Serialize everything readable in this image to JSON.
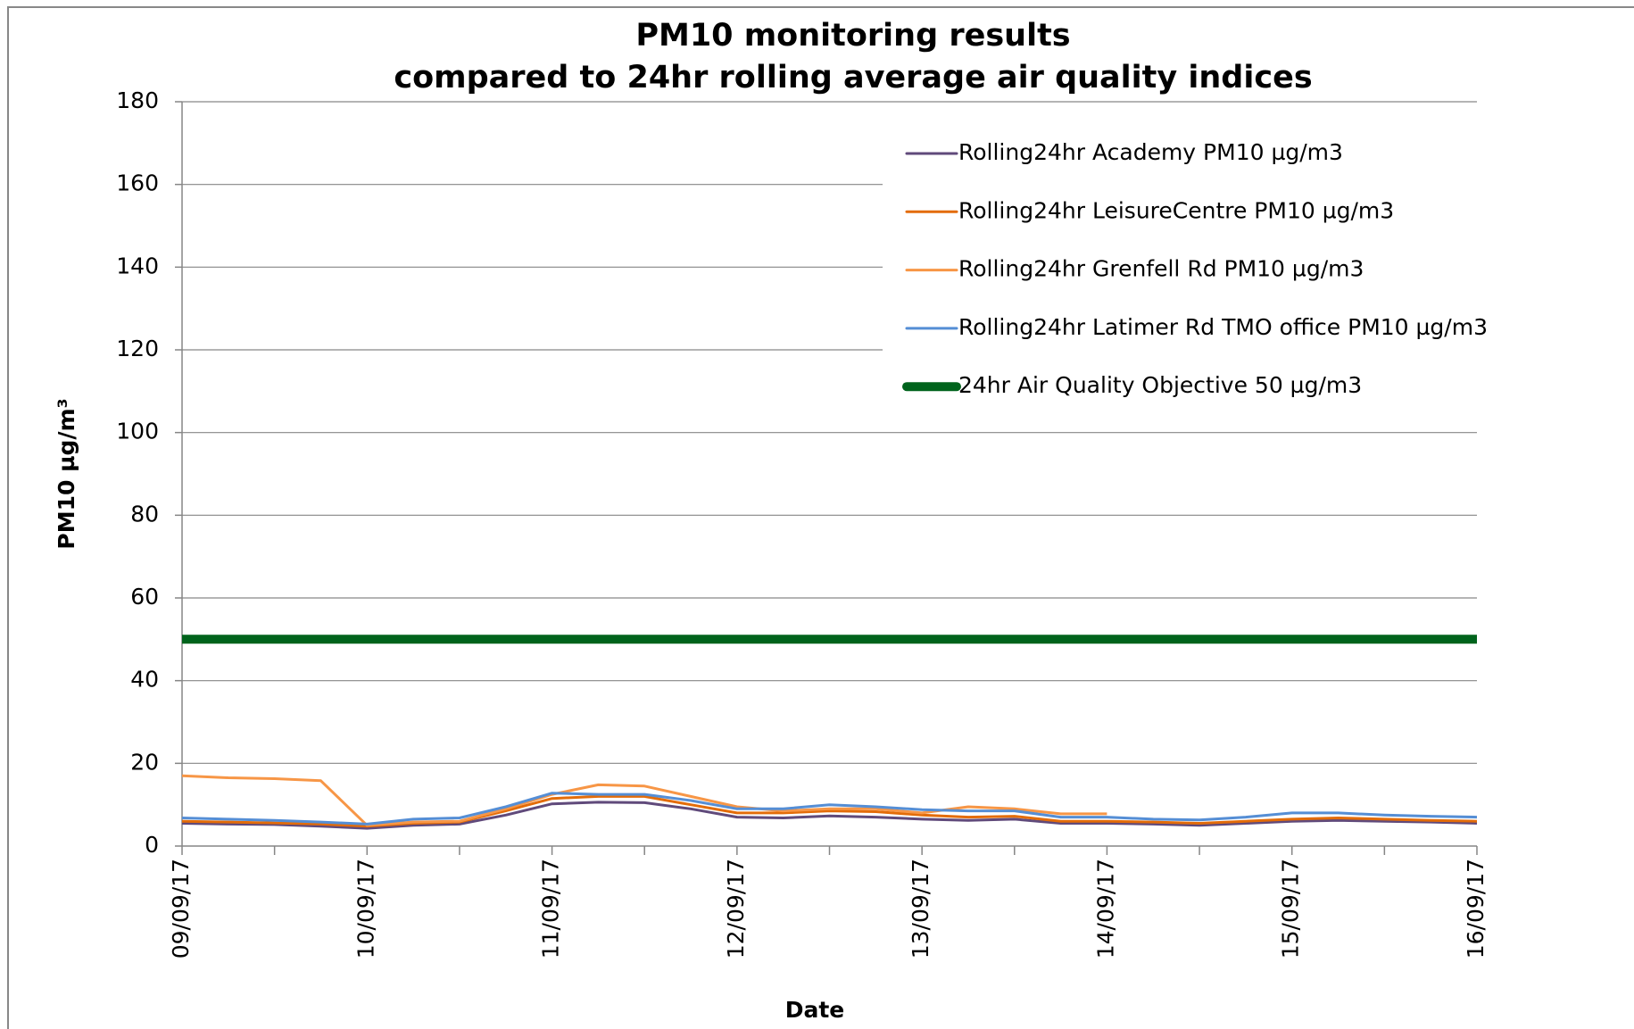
{
  "chart_data": {
    "type": "line",
    "title": "PM10 monitoring results",
    "subtitle": "compared to 24hr rolling average air quality indices",
    "x_label": "Date",
    "y_label": "PM10 µg/m³",
    "categories": [
      "09/09/17",
      null,
      null,
      null,
      "10/09/17",
      null,
      null,
      null,
      "11/09/17",
      null,
      null,
      null,
      "12/09/17",
      null,
      null,
      null,
      "13/09/17",
      null,
      null,
      null,
      "14/09/17",
      null,
      null,
      null,
      "15/09/17",
      null,
      null,
      null,
      "16/09/17"
    ],
    "ylim": [
      0,
      180
    ],
    "yticks": [
      0,
      20,
      40,
      60,
      80,
      100,
      120,
      140,
      160,
      180
    ],
    "grid": true,
    "legend": "upper right",
    "series": [
      {
        "name": "Rolling24hr Academy PM10 µg/m3",
        "color": "#604a7b",
        "line_width": 3,
        "values": [
          5.5,
          5.3,
          5.2,
          4.8,
          4.3,
          5,
          5.3,
          7.5,
          10.2,
          10.6,
          10.5,
          9,
          7,
          6.8,
          7.3,
          7,
          6.5,
          6.2,
          6.5,
          5.5,
          5.5,
          5.3,
          5,
          5.5,
          6,
          6.2,
          6,
          5.8,
          5.5
        ]
      },
      {
        "name": "Rolling24hr LeisureCentre PM10 µg/m3",
        "color": "#e36c09",
        "line_width": 3,
        "values": [
          6,
          5.8,
          5.6,
          5.3,
          4.8,
          5.5,
          5.8,
          8.5,
          11.5,
          12,
          12,
          10,
          8,
          8,
          8.5,
          8.3,
          7.5,
          7,
          7.2,
          6,
          6,
          5.8,
          5.5,
          6,
          6.5,
          6.8,
          6.5,
          6.2,
          6
        ]
      },
      {
        "name": "Rolling24hr Grenfell Rd PM10 µg/m3",
        "color": "#f79646",
        "line_width": 3,
        "values": [
          17,
          16.5,
          16.3,
          15.8,
          5,
          5.8,
          6,
          9,
          12.5,
          14.8,
          14.5,
          12,
          9.5,
          8.5,
          9,
          9,
          8,
          9.5,
          9,
          7.8,
          7.8,
          null,
          null,
          null,
          null,
          null,
          null,
          null,
          null
        ]
      },
      {
        "name": "Rolling24hr Latimer Rd TMO office PM10 µg/m3",
        "color": "#558ed5",
        "line_width": 3,
        "values": [
          6.8,
          6.5,
          6.2,
          5.8,
          5.3,
          6.5,
          6.8,
          9.5,
          12.8,
          12.5,
          12.5,
          11,
          9,
          9,
          10,
          9.5,
          8.8,
          8.5,
          8.5,
          7,
          7,
          6.5,
          6.3,
          7,
          8,
          8,
          7.5,
          7.2,
          7
        ]
      },
      {
        "name": "24hr Air Quality Objective 50 µg/m3",
        "color": "#00631c",
        "line_width": 10,
        "values": [
          50,
          50,
          50,
          50,
          50,
          50,
          50,
          50,
          50,
          50,
          50,
          50,
          50,
          50,
          50,
          50,
          50,
          50,
          50,
          50,
          50,
          50,
          50,
          50,
          50,
          50,
          50,
          50,
          50
        ]
      }
    ]
  }
}
